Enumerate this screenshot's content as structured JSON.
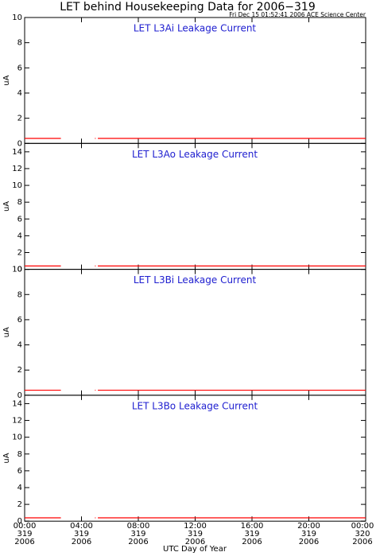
{
  "title": "LET behind Housekeeping Data for 2006−319",
  "subtitle": "Fri Dec 15 01:52:41 2006 ACE Science Center",
  "xlabel": "UTC Day of Year",
  "xlim": [
    0,
    24
  ],
  "xticks": [
    {
      "value": 0,
      "label": "00:00\n319\n2006"
    },
    {
      "value": 4,
      "label": "04:00\n319\n2006"
    },
    {
      "value": 8,
      "label": "08:00\n319\n2006"
    },
    {
      "value": 12,
      "label": "12:00\n319\n2006"
    },
    {
      "value": 16,
      "label": "16:00\n319\n2006"
    },
    {
      "value": 20,
      "label": "20:00\n319\n2006"
    },
    {
      "value": 24,
      "label": "00:00\n320\n2006"
    }
  ],
  "chart_data": [
    {
      "type": "line",
      "title": "LET L3Ai Leakage Current",
      "ylabel": "uA",
      "ylim": [
        0,
        10
      ],
      "yticks": [
        0,
        2,
        4,
        6,
        8,
        10
      ],
      "x": [
        0,
        2.55,
        2.6,
        4.95,
        5.0,
        5.05,
        5.15,
        24
      ],
      "series": [
        {
          "color": "#ff0000",
          "values": [
            0.4,
            0.4,
            null,
            0.4,
            0.4,
            null,
            0.4,
            0.4
          ]
        }
      ]
    },
    {
      "type": "line",
      "title": "LET L3Ao Leakage Current",
      "ylabel": "uA",
      "ylim": [
        0,
        15
      ],
      "yticks": [
        0,
        2,
        4,
        6,
        8,
        10,
        12,
        14
      ],
      "x": [
        0,
        2.55,
        2.6,
        4.95,
        5.0,
        5.05,
        5.15,
        24
      ],
      "series": [
        {
          "color": "#ff0000",
          "values": [
            0.4,
            0.4,
            null,
            0.4,
            0.4,
            null,
            0.4,
            0.4
          ]
        }
      ]
    },
    {
      "type": "line",
      "title": "LET L3Bi Leakage Current",
      "ylabel": "uA",
      "ylim": [
        0,
        10
      ],
      "yticks": [
        0,
        2,
        4,
        6,
        8,
        10
      ],
      "x": [
        0,
        2.55,
        2.6,
        4.95,
        5.0,
        5.05,
        5.15,
        24
      ],
      "series": [
        {
          "color": "#ff0000",
          "values": [
            0.4,
            0.4,
            null,
            0.4,
            0.4,
            null,
            0.4,
            0.4
          ]
        }
      ]
    },
    {
      "type": "line",
      "title": "LET L3Bo Leakage Current",
      "ylabel": "uA",
      "ylim": [
        0,
        15
      ],
      "yticks": [
        0,
        2,
        4,
        6,
        8,
        10,
        12,
        14
      ],
      "x": [
        0,
        2.55,
        2.6,
        4.95,
        5.0,
        5.05,
        5.15,
        24
      ],
      "series": [
        {
          "color": "#ff0000",
          "values": [
            0.4,
            0.4,
            null,
            0.4,
            0.4,
            null,
            0.4,
            0.4
          ]
        }
      ]
    }
  ]
}
